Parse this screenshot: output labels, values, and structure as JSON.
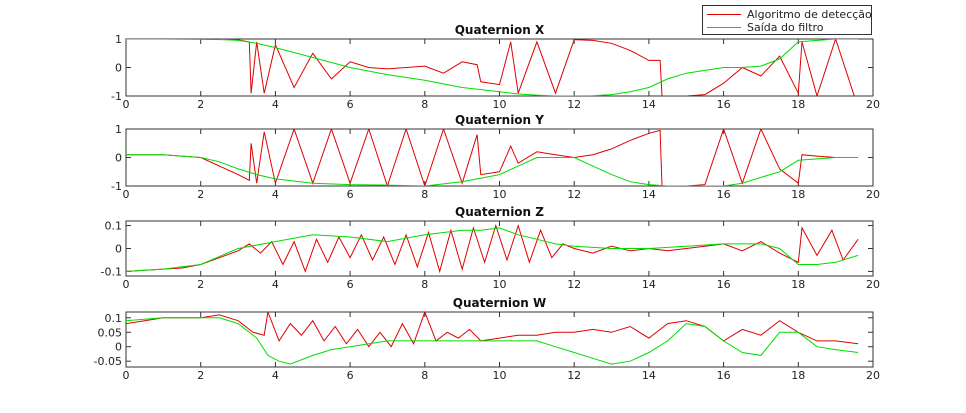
{
  "legend": [
    {
      "label": "Algoritmo de detecção",
      "color": "#e00000"
    },
    {
      "label": "Saída do filtro",
      "color": "#00dd00"
    }
  ],
  "chart_data": [
    {
      "type": "line",
      "title": "Quaternion X",
      "xlim": [
        0,
        20
      ],
      "ylim": [
        -1,
        1
      ],
      "xticks": [
        0,
        2,
        4,
        6,
        8,
        10,
        12,
        14,
        16,
        18,
        20
      ],
      "yticks": [
        -1,
        0,
        1
      ],
      "ytick_labels": [
        "-1",
        "0",
        "1"
      ],
      "series": [
        {
          "name": "Algoritmo de detecção",
          "color": "#e00000",
          "x": [
            0,
            1,
            2,
            3,
            3.3,
            3.35,
            3.5,
            3.7,
            4,
            4.5,
            5,
            5.5,
            6,
            6.5,
            7,
            7.5,
            8,
            8.5,
            9,
            9.4,
            9.5,
            10,
            10.3,
            10.5,
            11,
            11.5,
            12,
            12.5,
            13,
            13.5,
            14,
            14.3,
            14.35,
            15,
            15.5,
            16,
            16.5,
            17,
            17.5,
            18,
            18.1,
            18.5,
            19,
            19.5,
            19.6
          ],
          "y": [
            1,
            1,
            0.99,
            0.97,
            0.9,
            -0.9,
            0.9,
            -0.9,
            0.8,
            -0.7,
            0.5,
            -0.4,
            0.2,
            0.0,
            -0.05,
            0.0,
            0.05,
            -0.2,
            0.2,
            0.1,
            -0.5,
            -0.6,
            0.9,
            -0.9,
            0.9,
            -0.9,
            0.98,
            0.95,
            0.85,
            0.6,
            0.25,
            0.25,
            -1,
            -1,
            -0.95,
            -0.55,
            0.0,
            -0.3,
            0.4,
            -0.9,
            0.9,
            -1,
            1,
            -1,
            -1
          ]
        },
        {
          "name": "Saída do filtro",
          "color": "#00dd00",
          "x": [
            0,
            1,
            2,
            2.5,
            3,
            3.5,
            4,
            5,
            6,
            7,
            8,
            9,
            10,
            10.5,
            11,
            11.5,
            12,
            12.5,
            13,
            13.5,
            14,
            14.5,
            15,
            16,
            16.5,
            17,
            17.5,
            18,
            19,
            19.6
          ],
          "y": [
            1,
            1,
            1,
            0.99,
            0.95,
            0.85,
            0.7,
            0.35,
            0.0,
            -0.25,
            -0.45,
            -0.7,
            -0.85,
            -0.93,
            -0.97,
            -1,
            -1,
            -0.99,
            -0.95,
            -0.85,
            -0.7,
            -0.4,
            -0.2,
            0.0,
            0.0,
            0.05,
            0.3,
            0.9,
            1,
            1
          ]
        }
      ]
    },
    {
      "type": "line",
      "title": "Quaternion Y",
      "xlim": [
        0,
        20
      ],
      "ylim": [
        -1,
        1
      ],
      "xticks": [
        0,
        2,
        4,
        6,
        8,
        10,
        12,
        14,
        16,
        18,
        20
      ],
      "yticks": [
        -1,
        0,
        1
      ],
      "ytick_labels": [
        "-1",
        "0",
        "1"
      ],
      "series": [
        {
          "name": "Algoritmo de detecção",
          "color": "#e00000",
          "x": [
            0,
            1,
            2,
            3,
            3.3,
            3.35,
            3.5,
            3.7,
            4,
            4.5,
            5,
            5.5,
            6,
            6.5,
            7,
            7.5,
            8,
            8.5,
            9,
            9.4,
            9.5,
            10,
            10.3,
            10.5,
            11,
            11.5,
            12,
            12.5,
            13,
            13.5,
            14,
            14.3,
            14.35,
            15,
            15.5,
            16,
            16.5,
            17,
            17.5,
            18,
            18.1,
            18.5,
            19,
            19.6
          ],
          "y": [
            0.1,
            0.1,
            0.0,
            -0.6,
            -0.8,
            0.5,
            -0.9,
            0.9,
            -0.9,
            1,
            -0.9,
            1,
            -0.9,
            1,
            -1,
            1,
            -1,
            1,
            -0.9,
            0.8,
            -0.6,
            -0.5,
            0.4,
            -0.2,
            0.2,
            0.1,
            0.0,
            0.1,
            0.3,
            0.6,
            0.85,
            0.95,
            -1,
            -1,
            -0.95,
            1,
            -0.9,
            1,
            -0.4,
            -0.9,
            0.1,
            0.05,
            0.0,
            0.0
          ]
        },
        {
          "name": "Saída do filtro",
          "color": "#00dd00",
          "x": [
            0,
            1,
            2,
            2.5,
            3,
            3.5,
            4,
            5,
            6,
            7,
            8,
            9,
            10,
            10.5,
            11,
            11.5,
            12,
            12.5,
            13,
            13.5,
            14,
            14.5,
            15,
            16,
            16.5,
            17,
            17.5,
            18,
            19,
            19.6
          ],
          "y": [
            0.1,
            0.1,
            0.0,
            -0.15,
            -0.4,
            -0.6,
            -0.75,
            -0.9,
            -0.95,
            -0.97,
            -1,
            -0.85,
            -0.6,
            -0.3,
            0.0,
            0.0,
            0.0,
            -0.3,
            -0.6,
            -0.85,
            -0.95,
            -1,
            -1,
            -1,
            -0.9,
            -0.7,
            -0.5,
            -0.1,
            0.0,
            0.0
          ]
        }
      ]
    },
    {
      "type": "line",
      "title": "Quaternion Z",
      "xlim": [
        0,
        20
      ],
      "ylim": [
        -0.12,
        0.12
      ],
      "xticks": [
        0,
        2,
        4,
        6,
        8,
        10,
        12,
        14,
        16,
        18,
        20
      ],
      "yticks": [
        -0.1,
        0,
        0.1
      ],
      "ytick_labels": [
        "-0.1",
        "0",
        "0.1"
      ],
      "series": [
        {
          "name": "Algoritmo de detecção",
          "color": "#e00000",
          "x": [
            0,
            0.5,
            1,
            1.5,
            2,
            2.5,
            3,
            3.3,
            3.6,
            3.9,
            4.2,
            4.5,
            4.8,
            5.1,
            5.4,
            5.7,
            6,
            6.3,
            6.6,
            6.9,
            7.2,
            7.5,
            7.8,
            8.1,
            8.4,
            8.7,
            9,
            9.3,
            9.6,
            9.9,
            10.2,
            10.5,
            10.8,
            11.1,
            11.4,
            11.7,
            12,
            12.5,
            13,
            13.5,
            14,
            14.5,
            15,
            15.5,
            16,
            16.5,
            17,
            17.5,
            18,
            18.1,
            18.5,
            18.9,
            19.2,
            19.6
          ],
          "y": [
            -0.1,
            -0.095,
            -0.09,
            -0.085,
            -0.07,
            -0.04,
            -0.01,
            0.02,
            -0.02,
            0.03,
            -0.07,
            0.03,
            -0.1,
            0.04,
            -0.06,
            0.05,
            -0.04,
            0.06,
            -0.05,
            0.05,
            -0.07,
            0.06,
            -0.08,
            0.07,
            -0.1,
            0.08,
            -0.09,
            0.09,
            -0.06,
            0.1,
            -0.05,
            0.1,
            -0.06,
            0.08,
            -0.04,
            0.02,
            0.0,
            -0.02,
            0.01,
            -0.01,
            0.0,
            -0.01,
            0.0,
            0.01,
            0.02,
            -0.01,
            0.03,
            -0.02,
            -0.06,
            0.09,
            -0.03,
            0.08,
            -0.05,
            0.04
          ]
        },
        {
          "name": "Saída do filtro",
          "color": "#00dd00",
          "x": [
            0,
            1,
            2,
            3,
            4,
            5,
            6,
            7,
            8,
            9,
            9.5,
            10,
            10.5,
            11,
            11.5,
            12,
            13,
            14,
            15,
            16,
            17,
            17.5,
            18,
            18.5,
            19,
            19.6
          ],
          "y": [
            -0.1,
            -0.09,
            -0.07,
            0.0,
            0.03,
            0.06,
            0.05,
            0.03,
            0.06,
            0.08,
            0.08,
            0.09,
            0.06,
            0.04,
            0.02,
            0.01,
            0.0,
            0.0,
            0.01,
            0.02,
            0.02,
            0.0,
            -0.07,
            -0.07,
            -0.06,
            -0.03
          ]
        }
      ]
    },
    {
      "type": "line",
      "title": "Quaternion W",
      "xlim": [
        0,
        20
      ],
      "ylim": [
        -0.07,
        0.12
      ],
      "xticks": [
        0,
        2,
        4,
        6,
        8,
        10,
        12,
        14,
        16,
        18,
        20
      ],
      "yticks": [
        -0.05,
        0,
        0.05,
        0.1
      ],
      "ytick_labels": [
        "-0.05",
        "0",
        "0.05",
        "0.1"
      ],
      "series": [
        {
          "name": "Algoritmo de detecção",
          "color": "#e00000",
          "x": [
            0,
            0.5,
            1,
            1.5,
            2,
            2.5,
            3,
            3.4,
            3.7,
            3.8,
            4.1,
            4.4,
            4.7,
            5,
            5.3,
            5.6,
            5.9,
            6.2,
            6.5,
            6.8,
            7.1,
            7.4,
            7.7,
            8,
            8.3,
            8.6,
            8.9,
            9.2,
            9.5,
            10,
            10.5,
            11,
            11.5,
            12,
            12.5,
            13,
            13.5,
            14,
            14.5,
            15,
            15.5,
            16,
            16.5,
            17,
            17.5,
            18,
            18.5,
            19,
            19.6
          ],
          "y": [
            0.08,
            0.09,
            0.1,
            0.1,
            0.1,
            0.11,
            0.09,
            0.05,
            0.04,
            0.12,
            0.02,
            0.08,
            0.04,
            0.09,
            0.02,
            0.07,
            0.01,
            0.06,
            0.0,
            0.05,
            0.0,
            0.08,
            0.01,
            0.12,
            0.02,
            0.05,
            0.03,
            0.06,
            0.02,
            0.03,
            0.04,
            0.04,
            0.05,
            0.05,
            0.06,
            0.05,
            0.07,
            0.03,
            0.08,
            0.09,
            0.07,
            0.02,
            0.06,
            0.04,
            0.09,
            0.05,
            0.02,
            0.02,
            0.01
          ]
        },
        {
          "name": "Saída do filtro",
          "color": "#00dd00",
          "x": [
            0,
            1,
            2,
            2.5,
            3,
            3.5,
            3.8,
            4.1,
            4.4,
            5,
            5.5,
            6,
            6.5,
            7,
            8,
            9,
            10,
            11,
            11.5,
            12,
            12.5,
            13,
            13.5,
            14,
            14.5,
            15,
            15.5,
            16,
            16.5,
            17,
            17.5,
            18,
            18.5,
            19,
            19.6
          ],
          "y": [
            0.09,
            0.1,
            0.1,
            0.1,
            0.08,
            0.03,
            -0.03,
            -0.05,
            -0.06,
            -0.03,
            -0.01,
            0.0,
            0.01,
            0.02,
            0.02,
            0.02,
            0.02,
            0.02,
            0.0,
            -0.02,
            -0.04,
            -0.06,
            -0.05,
            -0.02,
            0.02,
            0.08,
            0.07,
            0.02,
            -0.02,
            -0.03,
            0.05,
            0.05,
            0.0,
            -0.01,
            -0.02
          ]
        }
      ]
    }
  ]
}
